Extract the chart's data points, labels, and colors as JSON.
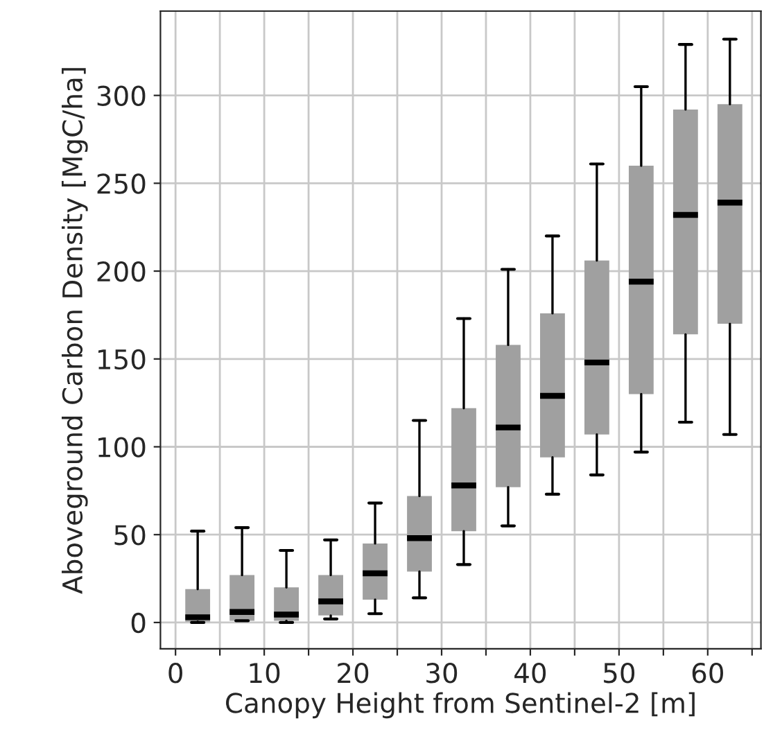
{
  "chart_data": {
    "type": "box",
    "xlabel": "Canopy Height from Sentinel-2 [m]",
    "ylabel": "Aboveground Carbon Density [MgC/ha]",
    "x": [
      2.5,
      7.5,
      12.5,
      17.5,
      22.5,
      27.5,
      32.5,
      37.5,
      42.5,
      47.5,
      52.5,
      57.5,
      62.5
    ],
    "color": "#a0a0a0",
    "boxes": [
      {
        "low": 0,
        "q1": 0.5,
        "median": 3,
        "q3": 19,
        "high": 52
      },
      {
        "low": 1,
        "q1": 1,
        "median": 6,
        "q3": 27,
        "high": 54
      },
      {
        "low": 0,
        "q1": 1,
        "median": 4.5,
        "q3": 20,
        "high": 41
      },
      {
        "low": 2,
        "q1": 4,
        "median": 12,
        "q3": 27,
        "high": 47
      },
      {
        "low": 5,
        "q1": 13,
        "median": 28,
        "q3": 45,
        "high": 68
      },
      {
        "low": 14,
        "q1": 29,
        "median": 48,
        "q3": 72,
        "high": 115
      },
      {
        "low": 33,
        "q1": 52,
        "median": 78,
        "q3": 122,
        "high": 173
      },
      {
        "low": 55,
        "q1": 77,
        "median": 111,
        "q3": 158,
        "high": 201
      },
      {
        "low": 73,
        "q1": 94,
        "median": 129,
        "q3": 176,
        "high": 220
      },
      {
        "low": 84,
        "q1": 107,
        "median": 148,
        "q3": 206,
        "high": 261
      },
      {
        "low": 97,
        "q1": 130,
        "median": 194,
        "q3": 260,
        "high": 305
      },
      {
        "low": 114,
        "q1": 164,
        "median": 232,
        "q3": 292,
        "high": 329
      },
      {
        "low": 107,
        "q1": 170,
        "median": 239,
        "q3": 295,
        "high": 332
      }
    ],
    "xlim": [
      -1.7,
      66
    ],
    "xticks": [
      0,
      {
        "value": 5,
        "label": null
      },
      10,
      {
        "value": 15,
        "label": null
      },
      20,
      {
        "value": 25,
        "label": null
      },
      30,
      {
        "value": 35,
        "label": null
      },
      40,
      {
        "value": 45,
        "label": null
      },
      50,
      {
        "value": 55,
        "label": null
      },
      60,
      {
        "value": 65,
        "label": null
      }
    ],
    "ylim": [
      -15,
      348
    ],
    "yticks": [
      0,
      50,
      100,
      150,
      200,
      250,
      300
    ],
    "grid": true
  }
}
